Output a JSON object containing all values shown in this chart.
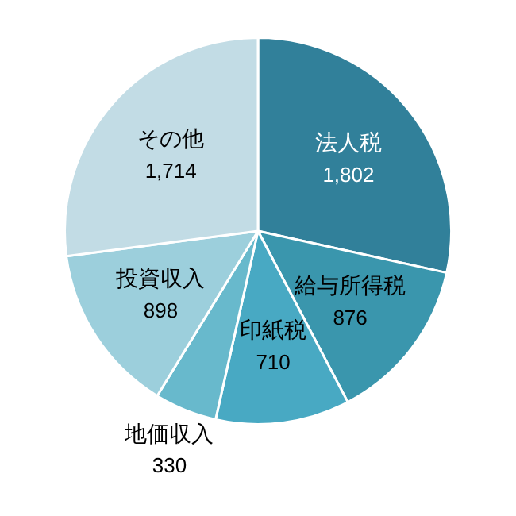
{
  "chart_data": {
    "type": "pie",
    "categories": [
      "法人税",
      "給与所得税",
      "印紙税",
      "地価収入",
      "投資収入",
      "その他"
    ],
    "values": [
      1802,
      876,
      710,
      330,
      898,
      1714
    ],
    "value_labels": [
      "1,802",
      "876",
      "710",
      "330",
      "898",
      "1,714"
    ],
    "colors": [
      "#31809a",
      "#3a96ad",
      "#48a9c3",
      "#68b9cc",
      "#9ccfdc",
      "#c2dce5"
    ],
    "legend": false
  }
}
